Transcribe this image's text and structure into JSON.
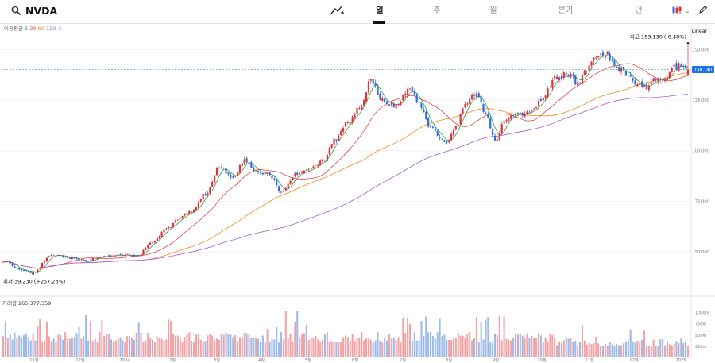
{
  "toolbar": {
    "ticker": "NVDA",
    "tabs": [
      "일",
      "주",
      "월",
      "분기",
      "년"
    ],
    "active_tab": "일",
    "icons": [
      "search-icon",
      "trend-draw-icon",
      "candle-type-icon",
      "chevron-down-icon",
      "pencil-icon"
    ]
  },
  "legend": {
    "ma_label": "이동평균",
    "ma_periods": [
      "5",
      "20",
      "60",
      "120"
    ],
    "ma_colors": [
      "#2e9e3e",
      "#e04545",
      "#f08a1c",
      "#a85cd6"
    ]
  },
  "colors": {
    "up": "#e0323b",
    "down": "#2f6fd8",
    "price_badge": "#1a73e8"
  },
  "chart_data": {
    "type": "candlestick",
    "scale_label": "Linear",
    "price_axis_ticks": [
      50,
      75,
      100,
      125,
      150
    ],
    "price_axis_tick_labels": [
      "50,000",
      "75,000",
      "100,000",
      "125,000",
      "150,000"
    ],
    "price_range": [
      30,
      158
    ],
    "current_price_label": "140.140",
    "current_price": 140.14,
    "high_annotation": "최고 153.130 (-8.48%)",
    "high_value": 153.13,
    "low_annotation": "최저 39.230 (+257.23%)",
    "low_value": 39.23,
    "x_tick_labels": [
      "11월",
      "12월",
      "2024",
      "2월",
      "3월",
      "4월",
      "5월",
      "6월",
      "7월",
      "8월",
      "9월",
      "10월",
      "11월",
      "12월",
      "2025"
    ],
    "close_anchors": [
      {
        "d": 0,
        "c": 45.5
      },
      {
        "d": 8,
        "c": 41
      },
      {
        "d": 13,
        "c": 39.5
      },
      {
        "d": 21,
        "c": 48.7
      },
      {
        "d": 28,
        "c": 47.2
      },
      {
        "d": 36,
        "c": 45.5
      },
      {
        "d": 44,
        "c": 48
      },
      {
        "d": 52,
        "c": 48.2
      },
      {
        "d": 59,
        "c": 48.5
      },
      {
        "d": 64,
        "c": 54
      },
      {
        "d": 71,
        "c": 61
      },
      {
        "d": 76,
        "c": 66
      },
      {
        "d": 82,
        "c": 70
      },
      {
        "d": 88,
        "c": 79
      },
      {
        "d": 94,
        "c": 92
      },
      {
        "d": 100,
        "c": 87
      },
      {
        "d": 105,
        "c": 95
      },
      {
        "d": 110,
        "c": 90
      },
      {
        "d": 116,
        "c": 88
      },
      {
        "d": 121,
        "c": 80
      },
      {
        "d": 127,
        "c": 88
      },
      {
        "d": 133,
        "c": 90
      },
      {
        "d": 139,
        "c": 95
      },
      {
        "d": 144,
        "c": 105
      },
      {
        "d": 150,
        "c": 115
      },
      {
        "d": 156,
        "c": 122
      },
      {
        "d": 160,
        "c": 135
      },
      {
        "d": 165,
        "c": 125
      },
      {
        "d": 171,
        "c": 122
      },
      {
        "d": 176,
        "c": 130
      },
      {
        "d": 181,
        "c": 124
      },
      {
        "d": 185,
        "c": 113
      },
      {
        "d": 190,
        "c": 107
      },
      {
        "d": 193,
        "c": 104
      },
      {
        "d": 197,
        "c": 112
      },
      {
        "d": 201,
        "c": 124
      },
      {
        "d": 206,
        "c": 128
      },
      {
        "d": 210,
        "c": 118
      },
      {
        "d": 214,
        "c": 105
      },
      {
        "d": 219,
        "c": 116
      },
      {
        "d": 225,
        "c": 118
      },
      {
        "d": 230,
        "c": 119
      },
      {
        "d": 235,
        "c": 126
      },
      {
        "d": 240,
        "c": 136
      },
      {
        "d": 246,
        "c": 138
      },
      {
        "d": 250,
        "c": 133
      },
      {
        "d": 254,
        "c": 141
      },
      {
        "d": 258,
        "c": 146
      },
      {
        "d": 263,
        "c": 147
      },
      {
        "d": 267,
        "c": 141
      },
      {
        "d": 271,
        "c": 138
      },
      {
        "d": 275,
        "c": 134
      },
      {
        "d": 279,
        "c": 131
      },
      {
        "d": 284,
        "c": 136
      },
      {
        "d": 288,
        "c": 134
      },
      {
        "d": 292,
        "c": 141
      },
      {
        "d": 296,
        "c": 143
      },
      {
        "d": 298,
        "c": 140.14
      }
    ],
    "moving_averages": [
      {
        "name": "MA5",
        "period": 5
      },
      {
        "name": "MA20",
        "period": 20
      },
      {
        "name": "MA60",
        "period": 60
      },
      {
        "name": "MA120",
        "period": 120
      }
    ],
    "volume": {
      "label": "거래량 265,377,359",
      "axis_ticks": [
        250,
        500,
        750,
        1000
      ],
      "axis_tick_labels": [
        "250m",
        "500m",
        "750m",
        "1000m"
      ],
      "max": 1100,
      "last_value_millions": 265.38
    }
  }
}
